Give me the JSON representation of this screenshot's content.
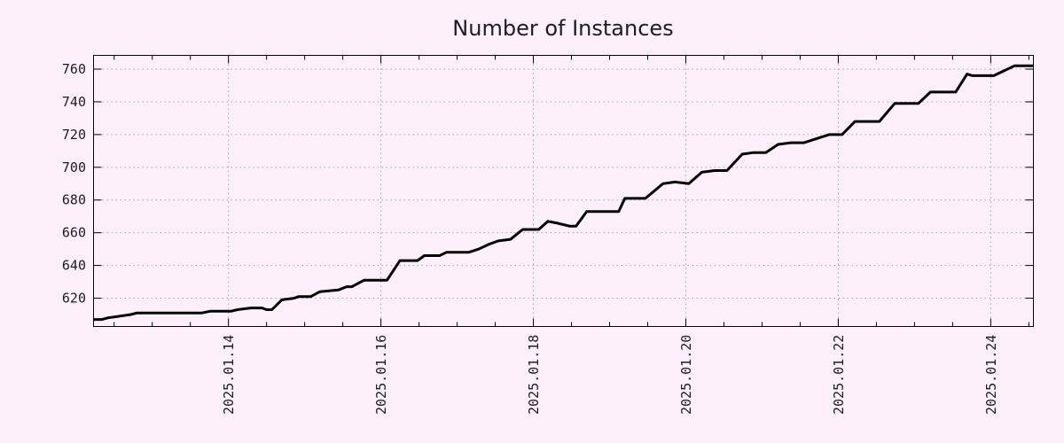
{
  "chart_data": {
    "type": "line",
    "title": "Number of Instances",
    "x_axis": {
      "kind": "time",
      "tick_label_format": "YYYY.MM.DD",
      "major_ticks": [
        {
          "day": 14,
          "label": "2025.01.14"
        },
        {
          "day": 16,
          "label": "2025.01.16"
        },
        {
          "day": 18,
          "label": "2025.01.18"
        },
        {
          "day": 20,
          "label": "2025.01.20"
        },
        {
          "day": 22,
          "label": "2025.01.22"
        },
        {
          "day": 24,
          "label": "2025.01.24"
        }
      ],
      "minor_tick_step_days": 0.5,
      "range_days": [
        12.23,
        24.56
      ]
    },
    "y_axis": {
      "ticks": [
        620,
        640,
        660,
        680,
        700,
        720,
        740,
        760
      ],
      "range": [
        602.7,
        768.4
      ]
    },
    "grid": {
      "style": "dotted",
      "horizontal": true,
      "vertical": true
    },
    "legend_position": "none",
    "series": [
      {
        "name": "instances",
        "color": "#000000",
        "line_width": 3,
        "points": [
          [
            12.23,
            607
          ],
          [
            12.34,
            607
          ],
          [
            12.42,
            608
          ],
          [
            12.57,
            609
          ],
          [
            12.72,
            610
          ],
          [
            12.8,
            611
          ],
          [
            13.65,
            611
          ],
          [
            13.76,
            612
          ],
          [
            14.03,
            612
          ],
          [
            14.12,
            613
          ],
          [
            14.29,
            614
          ],
          [
            14.44,
            614
          ],
          [
            14.5,
            613
          ],
          [
            14.57,
            613
          ],
          [
            14.7,
            619
          ],
          [
            14.86,
            620
          ],
          [
            14.92,
            621
          ],
          [
            15.08,
            621
          ],
          [
            15.2,
            624
          ],
          [
            15.44,
            625
          ],
          [
            15.55,
            627
          ],
          [
            15.62,
            627
          ],
          [
            15.78,
            631
          ],
          [
            16.08,
            631
          ],
          [
            16.25,
            643
          ],
          [
            16.48,
            643
          ],
          [
            16.57,
            646
          ],
          [
            16.77,
            646
          ],
          [
            16.86,
            648
          ],
          [
            17.15,
            648
          ],
          [
            17.28,
            650
          ],
          [
            17.42,
            653
          ],
          [
            17.54,
            655
          ],
          [
            17.7,
            656
          ],
          [
            17.86,
            662
          ],
          [
            18.07,
            662
          ],
          [
            18.19,
            667
          ],
          [
            18.3,
            666
          ],
          [
            18.48,
            664
          ],
          [
            18.56,
            664
          ],
          [
            18.7,
            673
          ],
          [
            19.12,
            673
          ],
          [
            19.2,
            681
          ],
          [
            19.47,
            681
          ],
          [
            19.7,
            690
          ],
          [
            19.86,
            691
          ],
          [
            20.04,
            690
          ],
          [
            20.21,
            697
          ],
          [
            20.38,
            698
          ],
          [
            20.54,
            698
          ],
          [
            20.74,
            708
          ],
          [
            20.89,
            709
          ],
          [
            21.05,
            709
          ],
          [
            21.21,
            714
          ],
          [
            21.38,
            715
          ],
          [
            21.55,
            715
          ],
          [
            21.88,
            720
          ],
          [
            22.05,
            720
          ],
          [
            22.22,
            728
          ],
          [
            22.54,
            728
          ],
          [
            22.74,
            739
          ],
          [
            23.05,
            739
          ],
          [
            23.21,
            746
          ],
          [
            23.54,
            746
          ],
          [
            23.69,
            757
          ],
          [
            23.76,
            756
          ],
          [
            24.04,
            756
          ],
          [
            24.31,
            762
          ],
          [
            24.56,
            762
          ]
        ]
      }
    ]
  },
  "colors": {
    "background": "#fdf0fa",
    "plot_border": "#000000",
    "grid": "#a9a2aa",
    "text": "#1c1c24",
    "line": "#000000"
  }
}
